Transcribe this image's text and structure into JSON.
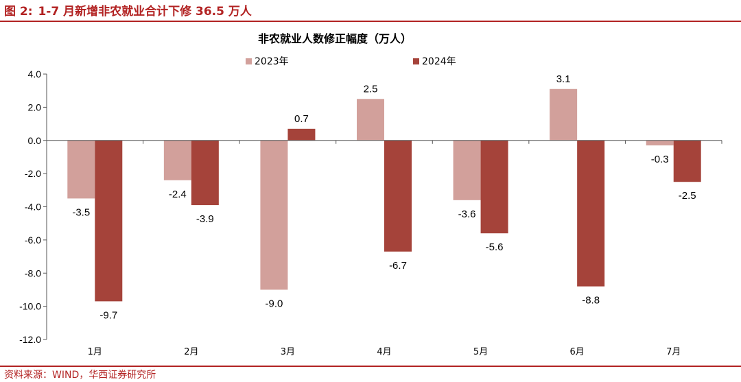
{
  "figure": {
    "title_prefix": "图 2:",
    "title": "1-7 月新增非农就业合计下修 36.5 万人",
    "source": "资料来源：WIND，华西证券研究所"
  },
  "chart_data": {
    "type": "bar",
    "title": "非农就业人数修正幅度（万人）",
    "categories": [
      "1月",
      "2月",
      "3月",
      "4月",
      "5月",
      "6月",
      "7月"
    ],
    "series": [
      {
        "name": "2023年",
        "color": "#d2a09b",
        "values": [
          -3.5,
          -2.4,
          -9.0,
          2.5,
          -3.6,
          3.1,
          -0.3
        ]
      },
      {
        "name": "2024年",
        "color": "#a5433a",
        "values": [
          -9.7,
          -3.9,
          0.7,
          -6.7,
          -5.6,
          -8.8,
          -2.5
        ]
      }
    ],
    "ylim": [
      -12.0,
      4.0
    ],
    "yticks": [
      "4.0",
      "2.0",
      "0.0",
      "-2.0",
      "-4.0",
      "-6.0",
      "-8.0",
      "-10.0",
      "-12.0"
    ],
    "legend_position": "top",
    "grid": false
  }
}
